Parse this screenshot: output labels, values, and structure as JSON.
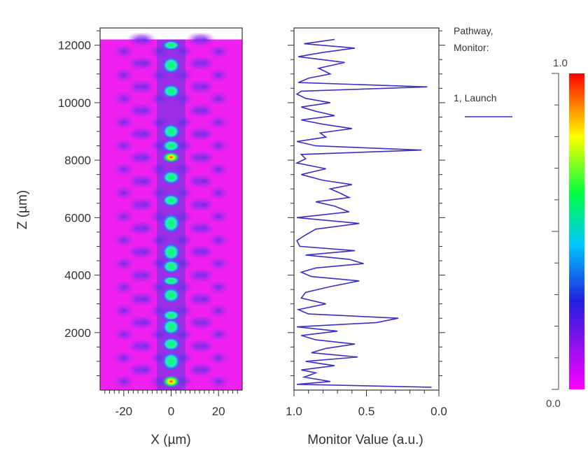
{
  "chart_data": [
    {
      "type": "heatmap",
      "xlabel": "X (µm)",
      "ylabel": "Z (µm)",
      "xlim": [
        -30,
        30
      ],
      "ylim": [
        0,
        12600
      ],
      "data_zmax": 12200,
      "x_ticks": [
        -20,
        0,
        20
      ],
      "x_tick_labels": [
        "-20",
        "0",
        "20"
      ],
      "y_ticks": [
        2000,
        4000,
        6000,
        8000,
        10000,
        12000
      ],
      "y_tick_labels": [
        "2000",
        "4000",
        "6000",
        "8000",
        "10000",
        "12000"
      ],
      "background_color": "#f020f0",
      "hot_spots_z": [
        300,
        1000,
        1600,
        2200,
        2600,
        3300,
        3800,
        4300,
        4800,
        5800,
        6600,
        7400,
        8100,
        8500,
        9000,
        10400,
        11300,
        12000
      ]
    },
    {
      "type": "line",
      "xlabel": "Monitor Value (a.u.)",
      "xlim": [
        1.0,
        0.0
      ],
      "x_ticks": [
        1.0,
        0.5,
        0.0
      ],
      "x_tick_labels": [
        "1.0",
        "0.5",
        "0.0"
      ],
      "ylim": [
        0,
        12600
      ],
      "legend_title": "Pathway,\nMonitor:",
      "series": [
        {
          "name": "1, Launch",
          "color": "#3a2fc0",
          "z": [
            100,
            200,
            300,
            450,
            600,
            700,
            850,
            1000,
            1150,
            1300,
            1450,
            1600,
            1750,
            1900,
            2050,
            2200,
            2350,
            2500,
            2650,
            2800,
            3000,
            3200,
            3400,
            3600,
            3800,
            3950,
            4100,
            4250,
            4400,
            4550,
            4700,
            4850,
            5000,
            5200,
            5400,
            5600,
            5800,
            6000,
            6200,
            6400,
            6550,
            6700,
            6850,
            7000,
            7150,
            7300,
            7500,
            7700,
            7900,
            8050,
            8200,
            8350,
            8500,
            8650,
            8800,
            8950,
            9100,
            9250,
            9400,
            9550,
            9700,
            9850,
            10000,
            10150,
            10300,
            10400,
            10550,
            10700,
            10850,
            11000,
            11200,
            11400,
            11600,
            11750,
            11900,
            12050,
            12200
          ],
          "values": [
            0.05,
            0.98,
            0.75,
            0.93,
            0.85,
            0.95,
            0.72,
            0.92,
            0.56,
            0.88,
            0.78,
            0.58,
            0.85,
            0.95,
            0.7,
            0.98,
            0.43,
            0.28,
            0.9,
            0.97,
            0.78,
            0.95,
            0.92,
            0.75,
            0.55,
            0.88,
            0.95,
            0.85,
            0.52,
            0.62,
            0.92,
            0.58,
            0.96,
            0.98,
            0.92,
            0.85,
            0.55,
            0.98,
            0.62,
            0.72,
            0.85,
            0.62,
            0.68,
            0.75,
            0.6,
            0.8,
            0.95,
            0.78,
            0.98,
            0.92,
            0.95,
            0.12,
            0.85,
            0.98,
            0.78,
            0.82,
            0.6,
            0.8,
            0.95,
            0.72,
            0.85,
            0.95,
            0.75,
            0.92,
            0.98,
            0.95,
            0.08,
            0.97,
            0.9,
            0.75,
            0.83,
            0.65,
            0.97,
            0.8,
            0.58,
            0.93,
            0.72
          ]
        }
      ]
    },
    {
      "type": "colorbar",
      "max_label": "1.0",
      "min_label": "0.0",
      "colors": [
        "#ff00ff",
        "#2020e0",
        "#00c8ff",
        "#00ff40",
        "#ffff00",
        "#ff0000"
      ]
    }
  ]
}
